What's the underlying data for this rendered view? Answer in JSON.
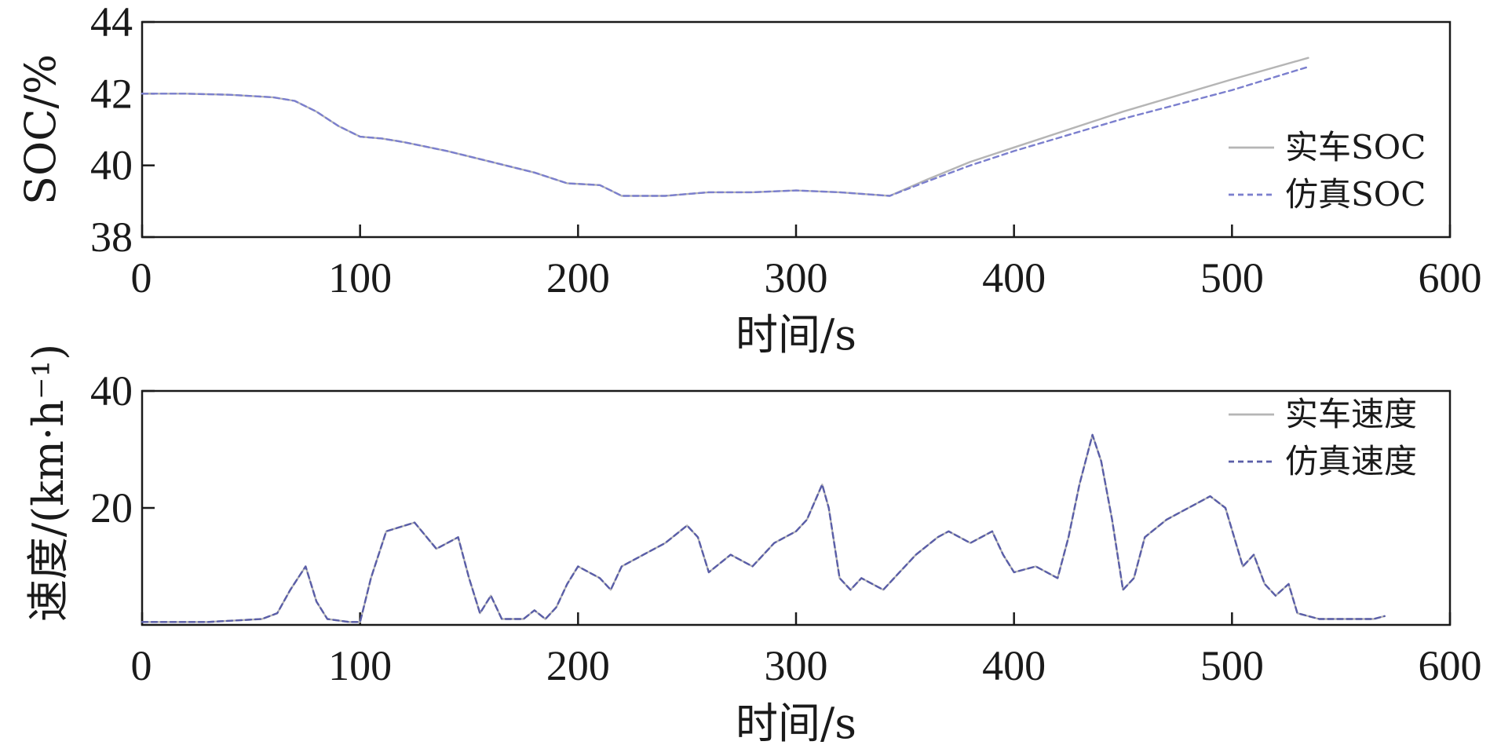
{
  "chart_data": [
    {
      "type": "line",
      "xlabel": "时间/s",
      "ylabel": "SOC/%",
      "xlim": [
        0,
        600
      ],
      "ylim": [
        38,
        44
      ],
      "xticks": [
        "0",
        "100",
        "200",
        "300",
        "400",
        "500",
        "600"
      ],
      "yticks": [
        "38",
        "40",
        "42",
        "44"
      ],
      "legend_position": "right",
      "grid": false,
      "series": [
        {
          "name": "实车SOC",
          "color": "#b5b5b5",
          "style": "solid",
          "points": [
            [
              0,
              42.0
            ],
            [
              20,
              42.0
            ],
            [
              40,
              41.97
            ],
            [
              60,
              41.9
            ],
            [
              70,
              41.8
            ],
            [
              80,
              41.5
            ],
            [
              90,
              41.1
            ],
            [
              100,
              40.8
            ],
            [
              110,
              40.75
            ],
            [
              120,
              40.65
            ],
            [
              140,
              40.4
            ],
            [
              160,
              40.1
            ],
            [
              180,
              39.8
            ],
            [
              195,
              39.5
            ],
            [
              210,
              39.45
            ],
            [
              215,
              39.3
            ],
            [
              220,
              39.15
            ],
            [
              240,
              39.15
            ],
            [
              260,
              39.25
            ],
            [
              280,
              39.25
            ],
            [
              300,
              39.3
            ],
            [
              320,
              39.25
            ],
            [
              343,
              39.15
            ],
            [
              360,
              39.6
            ],
            [
              380,
              40.1
            ],
            [
              400,
              40.5
            ],
            [
              450,
              41.5
            ],
            [
              500,
              42.4
            ],
            [
              535,
              43.0
            ]
          ]
        },
        {
          "name": "仿真SOC",
          "color": "#7b7fce",
          "style": "dashed",
          "points": [
            [
              0,
              42.0
            ],
            [
              20,
              42.0
            ],
            [
              40,
              41.97
            ],
            [
              60,
              41.9
            ],
            [
              70,
              41.8
            ],
            [
              80,
              41.5
            ],
            [
              90,
              41.1
            ],
            [
              100,
              40.8
            ],
            [
              110,
              40.75
            ],
            [
              120,
              40.65
            ],
            [
              140,
              40.4
            ],
            [
              160,
              40.1
            ],
            [
              180,
              39.8
            ],
            [
              195,
              39.5
            ],
            [
              210,
              39.45
            ],
            [
              215,
              39.3
            ],
            [
              220,
              39.15
            ],
            [
              240,
              39.15
            ],
            [
              260,
              39.25
            ],
            [
              280,
              39.25
            ],
            [
              300,
              39.3
            ],
            [
              320,
              39.25
            ],
            [
              343,
              39.15
            ],
            [
              360,
              39.55
            ],
            [
              380,
              40.0
            ],
            [
              400,
              40.4
            ],
            [
              450,
              41.3
            ],
            [
              500,
              42.1
            ],
            [
              535,
              42.75
            ]
          ]
        }
      ]
    },
    {
      "type": "line",
      "xlabel": "时间/s",
      "ylabel": "速度/(km·h⁻¹)",
      "xlim": [
        0,
        600
      ],
      "ylim": [
        0,
        40
      ],
      "xticks": [
        "0",
        "100",
        "200",
        "300",
        "400",
        "500",
        "600"
      ],
      "yticks": [
        "20",
        "40"
      ],
      "legend_position": "top-right",
      "grid": false,
      "series": [
        {
          "name": "实车速度",
          "color": "#b5b5b5",
          "style": "solid",
          "points": [
            [
              0,
              0.5
            ],
            [
              30,
              0.5
            ],
            [
              55,
              1.0
            ],
            [
              62,
              2.0
            ],
            [
              68,
              6.0
            ],
            [
              75,
              10.0
            ],
            [
              80,
              4.0
            ],
            [
              85,
              1.0
            ],
            [
              95,
              0.5
            ],
            [
              100,
              0.5
            ],
            [
              105,
              8.0
            ],
            [
              112,
              16.0
            ],
            [
              125,
              17.5
            ],
            [
              135,
              13.0
            ],
            [
              145,
              15.0
            ],
            [
              150,
              8.0
            ],
            [
              155,
              2.0
            ],
            [
              160,
              5.0
            ],
            [
              165,
              1.0
            ],
            [
              175,
              1.0
            ],
            [
              180,
              2.5
            ],
            [
              185,
              1.0
            ],
            [
              190,
              3.0
            ],
            [
              195,
              7.0
            ],
            [
              200,
              10.0
            ],
            [
              210,
              8.0
            ],
            [
              215,
              6.0
            ],
            [
              220,
              10.0
            ],
            [
              230,
              12.0
            ],
            [
              240,
              14.0
            ],
            [
              250,
              17.0
            ],
            [
              255,
              15.0
            ],
            [
              260,
              9.0
            ],
            [
              270,
              12.0
            ],
            [
              280,
              10.0
            ],
            [
              290,
              14.0
            ],
            [
              300,
              16.0
            ],
            [
              305,
              18.0
            ],
            [
              312,
              24.0
            ],
            [
              315,
              20.0
            ],
            [
              320,
              8.0
            ],
            [
              325,
              6.0
            ],
            [
              330,
              8.0
            ],
            [
              340,
              6.0
            ],
            [
              345,
              8.0
            ],
            [
              355,
              12.0
            ],
            [
              365,
              15.0
            ],
            [
              370,
              16.0
            ],
            [
              380,
              14.0
            ],
            [
              390,
              16.0
            ],
            [
              395,
              12.0
            ],
            [
              400,
              9.0
            ],
            [
              410,
              10.0
            ],
            [
              420,
              8.0
            ],
            [
              425,
              15.0
            ],
            [
              430,
              24.0
            ],
            [
              436,
              32.5
            ],
            [
              440,
              28.0
            ],
            [
              445,
              18.0
            ],
            [
              450,
              6.0
            ],
            [
              455,
              8.0
            ],
            [
              460,
              15.0
            ],
            [
              470,
              18.0
            ],
            [
              480,
              20.0
            ],
            [
              490,
              22.0
            ],
            [
              497,
              20.0
            ],
            [
              505,
              10.0
            ],
            [
              510,
              12.0
            ],
            [
              515,
              7.0
            ],
            [
              520,
              5.0
            ],
            [
              526,
              7.0
            ],
            [
              530,
              2.0
            ],
            [
              540,
              1.0
            ],
            [
              555,
              1.0
            ],
            [
              565,
              1.0
            ],
            [
              570,
              1.5
            ]
          ]
        },
        {
          "name": "仿真速度",
          "color": "#5a5ea8",
          "style": "dashed",
          "points": [
            [
              0,
              0.5
            ],
            [
              30,
              0.5
            ],
            [
              55,
              1.0
            ],
            [
              62,
              2.0
            ],
            [
              68,
              6.0
            ],
            [
              75,
              10.0
            ],
            [
              80,
              4.0
            ],
            [
              85,
              1.0
            ],
            [
              95,
              0.5
            ],
            [
              100,
              0.5
            ],
            [
              105,
              8.0
            ],
            [
              112,
              16.0
            ],
            [
              125,
              17.5
            ],
            [
              135,
              13.0
            ],
            [
              145,
              15.0
            ],
            [
              150,
              8.0
            ],
            [
              155,
              2.0
            ],
            [
              160,
              5.0
            ],
            [
              165,
              1.0
            ],
            [
              175,
              1.0
            ],
            [
              180,
              2.5
            ],
            [
              185,
              1.0
            ],
            [
              190,
              3.0
            ],
            [
              195,
              7.0
            ],
            [
              200,
              10.0
            ],
            [
              210,
              8.0
            ],
            [
              215,
              6.0
            ],
            [
              220,
              10.0
            ],
            [
              230,
              12.0
            ],
            [
              240,
              14.0
            ],
            [
              250,
              17.0
            ],
            [
              255,
              15.0
            ],
            [
              260,
              9.0
            ],
            [
              270,
              12.0
            ],
            [
              280,
              10.0
            ],
            [
              290,
              14.0
            ],
            [
              300,
              16.0
            ],
            [
              305,
              18.0
            ],
            [
              312,
              24.0
            ],
            [
              315,
              20.0
            ],
            [
              320,
              8.0
            ],
            [
              325,
              6.0
            ],
            [
              330,
              8.0
            ],
            [
              340,
              6.0
            ],
            [
              345,
              8.0
            ],
            [
              355,
              12.0
            ],
            [
              365,
              15.0
            ],
            [
              370,
              16.0
            ],
            [
              380,
              14.0
            ],
            [
              390,
              16.0
            ],
            [
              395,
              12.0
            ],
            [
              400,
              9.0
            ],
            [
              410,
              10.0
            ],
            [
              420,
              8.0
            ],
            [
              425,
              15.0
            ],
            [
              430,
              24.0
            ],
            [
              436,
              32.5
            ],
            [
              440,
              28.0
            ],
            [
              445,
              18.0
            ],
            [
              450,
              6.0
            ],
            [
              455,
              8.0
            ],
            [
              460,
              15.0
            ],
            [
              470,
              18.0
            ],
            [
              480,
              20.0
            ],
            [
              490,
              22.0
            ],
            [
              497,
              20.0
            ],
            [
              505,
              10.0
            ],
            [
              510,
              12.0
            ],
            [
              515,
              7.0
            ],
            [
              520,
              5.0
            ],
            [
              526,
              7.0
            ],
            [
              530,
              2.0
            ],
            [
              540,
              1.0
            ],
            [
              555,
              1.0
            ],
            [
              565,
              1.0
            ],
            [
              570,
              1.5
            ]
          ]
        }
      ]
    }
  ]
}
